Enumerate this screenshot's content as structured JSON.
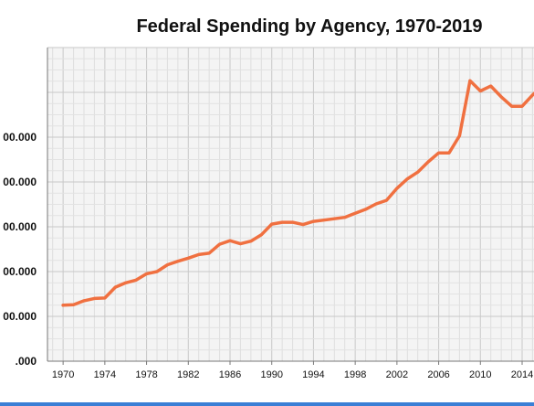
{
  "chart_data": {
    "type": "line",
    "title": "Federal Spending by Agency, 1970-2019",
    "xlabel": "",
    "ylabel": "",
    "x": [
      1970,
      1971,
      1972,
      1973,
      1974,
      1975,
      1976,
      1977,
      1978,
      1979,
      1980,
      1981,
      1982,
      1983,
      1984,
      1985,
      1986,
      1987,
      1988,
      1989,
      1990,
      1991,
      1992,
      1993,
      1994,
      1995,
      1996,
      1997,
      1998,
      1999,
      2000,
      2001,
      2002,
      2003,
      2004,
      2005,
      2006,
      2007,
      2008,
      2009,
      2010,
      2011,
      2012,
      2013,
      2014,
      2015,
      2016
    ],
    "series": [
      {
        "values": [
          225,
          226,
          235,
          240,
          241,
          265,
          275,
          281,
          295,
          300,
          315,
          323,
          330,
          338,
          341,
          361,
          369,
          362,
          368,
          382,
          406,
          410,
          410,
          405,
          412,
          415,
          418,
          421,
          430,
          439,
          451,
          459,
          486,
          507,
          522,
          545,
          565,
          565,
          603,
          726,
          703,
          714,
          690,
          669,
          669,
          694,
          715
        ],
        "color": "#f07040"
      }
    ],
    "x_ticks": [
      "1970",
      "1974",
      "1978",
      "1982",
      "1986",
      "1990",
      "1994",
      "1998",
      "2002",
      "2006",
      "2010",
      "2014"
    ],
    "y_ticks": [
      ".000",
      "00.000",
      "00.000",
      "00.000",
      "00.000",
      "00.000"
    ],
    "grid": true
  }
}
